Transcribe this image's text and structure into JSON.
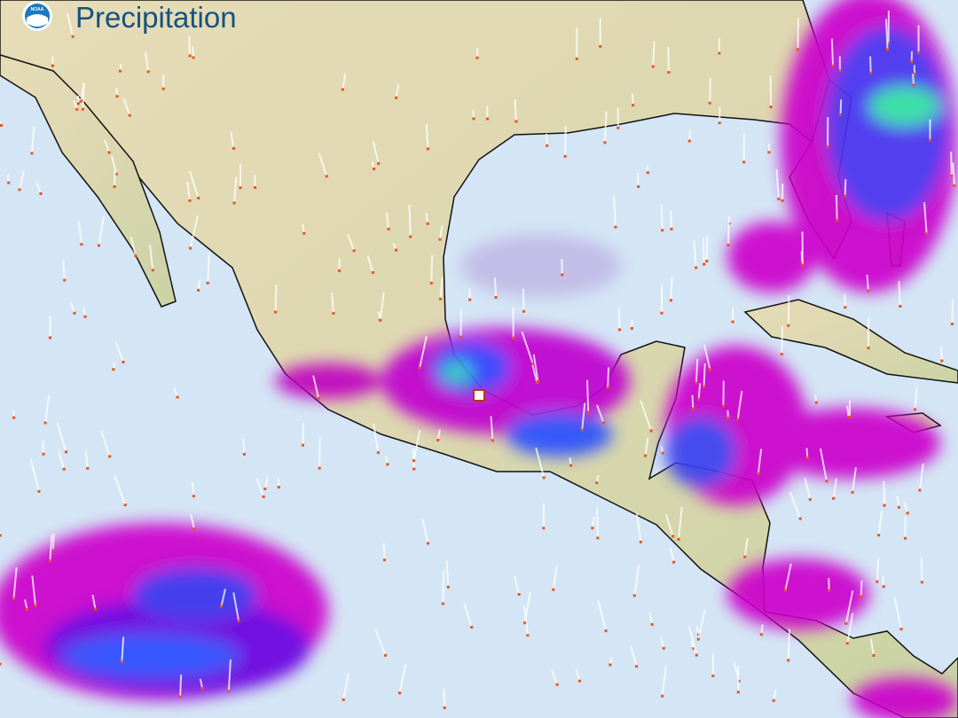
{
  "header": {
    "title": "Precipitation",
    "logo": "NOAA"
  }
}
